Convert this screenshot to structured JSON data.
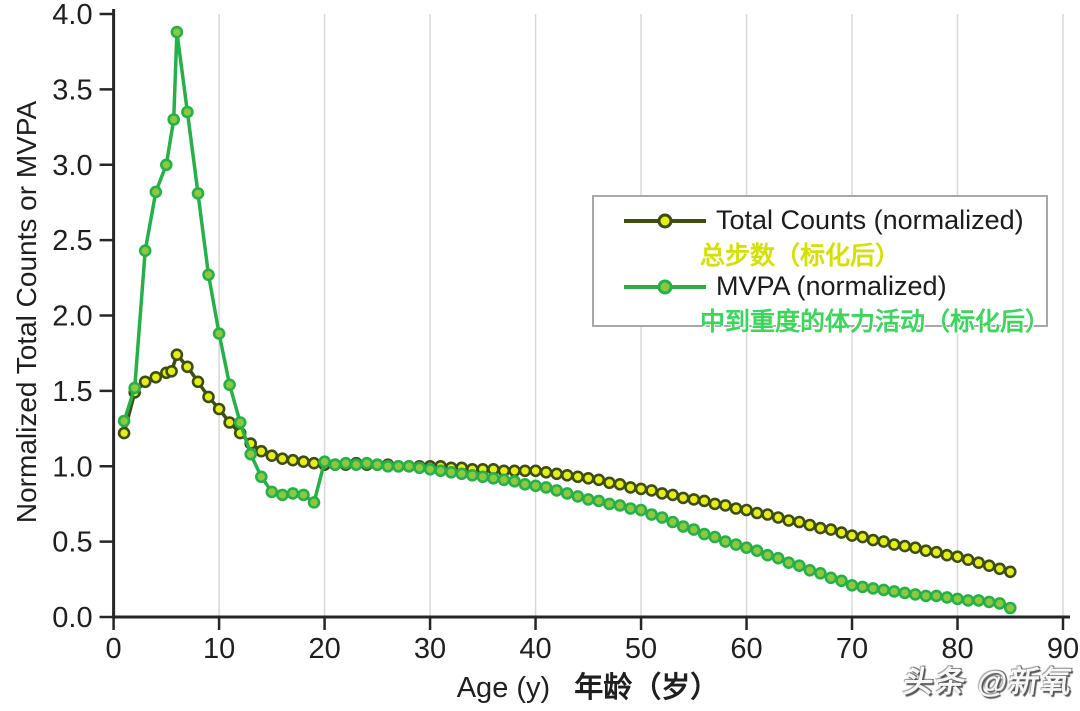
{
  "watermark": "头条 @新氧",
  "chart_data": {
    "type": "line",
    "title": "",
    "xlabel_en": "Age (y)",
    "xlabel_zh": "年龄（岁）",
    "ylabel": "Normalized Total Counts or MVPA",
    "xlim": [
      0,
      90
    ],
    "ylim": [
      0,
      4.0
    ],
    "x_ticks": [
      0,
      10,
      20,
      30,
      40,
      50,
      60,
      70,
      80,
      90
    ],
    "y_ticks": [
      0,
      0.5,
      1.0,
      1.5,
      2.0,
      2.5,
      3.0,
      3.5,
      4.0
    ],
    "y_tick_labels": [
      "0.0",
      "0.5",
      "1.0",
      "1.5",
      "2.0",
      "2.5",
      "3.0",
      "3.5",
      "4.0"
    ],
    "grid": "vertical-only",
    "gridline_color": "#d8d8d8",
    "axis_color": "#262626",
    "legend": {
      "position": "upper-right",
      "border_color": "#a8a8a8",
      "background": "#ffffff"
    },
    "series": [
      {
        "name": "Total Counts (normalized)",
        "name_zh": "总步数（标化后）",
        "name_zh_color": "#d4e000",
        "line_color": "#3d4d13",
        "marker_fill": "#e4ef17",
        "points": [
          [
            1,
            1.22
          ],
          [
            2,
            1.49
          ],
          [
            3,
            1.56
          ],
          [
            4,
            1.59
          ],
          [
            5,
            1.62
          ],
          [
            5.5,
            1.63
          ],
          [
            6,
            1.74
          ],
          [
            7,
            1.66
          ],
          [
            8,
            1.56
          ],
          [
            9,
            1.46
          ],
          [
            10,
            1.38
          ],
          [
            11,
            1.29
          ],
          [
            12,
            1.22
          ],
          [
            13,
            1.15
          ],
          [
            14,
            1.1
          ],
          [
            15,
            1.07
          ],
          [
            16,
            1.05
          ],
          [
            17,
            1.04
          ],
          [
            18,
            1.03
          ],
          [
            19,
            1.02
          ],
          [
            20,
            1.01
          ],
          [
            21,
            1.01
          ],
          [
            22,
            1.01
          ],
          [
            23,
            1.02
          ],
          [
            24,
            1.01
          ],
          [
            25,
            1.01
          ],
          [
            26,
            1.01
          ],
          [
            27,
            1.0
          ],
          [
            28,
            1.0
          ],
          [
            29,
            1.0
          ],
          [
            30,
            1.0
          ],
          [
            31,
            1.0
          ],
          [
            32,
            0.99
          ],
          [
            33,
            0.99
          ],
          [
            34,
            0.98
          ],
          [
            35,
            0.98
          ],
          [
            36,
            0.98
          ],
          [
            37,
            0.97
          ],
          [
            38,
            0.97
          ],
          [
            39,
            0.97
          ],
          [
            40,
            0.97
          ],
          [
            41,
            0.96
          ],
          [
            42,
            0.95
          ],
          [
            43,
            0.94
          ],
          [
            44,
            0.93
          ],
          [
            45,
            0.92
          ],
          [
            46,
            0.91
          ],
          [
            47,
            0.89
          ],
          [
            48,
            0.88
          ],
          [
            49,
            0.86
          ],
          [
            50,
            0.85
          ],
          [
            51,
            0.84
          ],
          [
            52,
            0.82
          ],
          [
            53,
            0.81
          ],
          [
            54,
            0.79
          ],
          [
            55,
            0.78
          ],
          [
            56,
            0.77
          ],
          [
            57,
            0.75
          ],
          [
            58,
            0.74
          ],
          [
            59,
            0.72
          ],
          [
            60,
            0.71
          ],
          [
            61,
            0.69
          ],
          [
            62,
            0.68
          ],
          [
            63,
            0.66
          ],
          [
            64,
            0.64
          ],
          [
            65,
            0.63
          ],
          [
            66,
            0.61
          ],
          [
            67,
            0.59
          ],
          [
            68,
            0.58
          ],
          [
            69,
            0.56
          ],
          [
            70,
            0.54
          ],
          [
            71,
            0.53
          ],
          [
            72,
            0.51
          ],
          [
            73,
            0.5
          ],
          [
            74,
            0.48
          ],
          [
            75,
            0.47
          ],
          [
            76,
            0.46
          ],
          [
            77,
            0.44
          ],
          [
            78,
            0.43
          ],
          [
            79,
            0.41
          ],
          [
            80,
            0.4
          ],
          [
            81,
            0.38
          ],
          [
            82,
            0.36
          ],
          [
            83,
            0.34
          ],
          [
            84,
            0.32
          ],
          [
            85,
            0.3
          ]
        ]
      },
      {
        "name": "MVPA (normalized)",
        "name_zh": "中到重度的体力活动（标化后）",
        "name_zh_color": "#3ed45e",
        "line_color": "#27b04a",
        "marker_fill": "#8cc93e",
        "points": [
          [
            1,
            1.3
          ],
          [
            2,
            1.52
          ],
          [
            3,
            2.43
          ],
          [
            4,
            2.82
          ],
          [
            5,
            3.0
          ],
          [
            5.7,
            3.3
          ],
          [
            6,
            3.88
          ],
          [
            7,
            3.35
          ],
          [
            8,
            2.81
          ],
          [
            9,
            2.27
          ],
          [
            10,
            1.88
          ],
          [
            11,
            1.54
          ],
          [
            12,
            1.29
          ],
          [
            13,
            1.08
          ],
          [
            14,
            0.93
          ],
          [
            15,
            0.83
          ],
          [
            16,
            0.81
          ],
          [
            17,
            0.82
          ],
          [
            18,
            0.81
          ],
          [
            19,
            0.76
          ],
          [
            20,
            1.03
          ],
          [
            21,
            1.01
          ],
          [
            22,
            1.02
          ],
          [
            23,
            1.01
          ],
          [
            24,
            1.02
          ],
          [
            25,
            1.01
          ],
          [
            26,
            1.0
          ],
          [
            27,
            1.0
          ],
          [
            28,
            1.0
          ],
          [
            29,
            0.99
          ],
          [
            30,
            0.98
          ],
          [
            31,
            0.97
          ],
          [
            32,
            0.96
          ],
          [
            33,
            0.95
          ],
          [
            34,
            0.94
          ],
          [
            35,
            0.93
          ],
          [
            36,
            0.92
          ],
          [
            37,
            0.91
          ],
          [
            38,
            0.9
          ],
          [
            39,
            0.88
          ],
          [
            40,
            0.87
          ],
          [
            41,
            0.86
          ],
          [
            42,
            0.84
          ],
          [
            43,
            0.82
          ],
          [
            44,
            0.8
          ],
          [
            45,
            0.78
          ],
          [
            46,
            0.77
          ],
          [
            47,
            0.75
          ],
          [
            48,
            0.74
          ],
          [
            49,
            0.72
          ],
          [
            50,
            0.71
          ],
          [
            51,
            0.68
          ],
          [
            52,
            0.66
          ],
          [
            53,
            0.63
          ],
          [
            54,
            0.6
          ],
          [
            55,
            0.58
          ],
          [
            56,
            0.55
          ],
          [
            57,
            0.53
          ],
          [
            58,
            0.5
          ],
          [
            59,
            0.48
          ],
          [
            60,
            0.46
          ],
          [
            61,
            0.44
          ],
          [
            62,
            0.41
          ],
          [
            63,
            0.39
          ],
          [
            64,
            0.36
          ],
          [
            65,
            0.34
          ],
          [
            66,
            0.31
          ],
          [
            67,
            0.29
          ],
          [
            68,
            0.26
          ],
          [
            69,
            0.24
          ],
          [
            70,
            0.21
          ],
          [
            71,
            0.2
          ],
          [
            72,
            0.19
          ],
          [
            73,
            0.18
          ],
          [
            74,
            0.17
          ],
          [
            75,
            0.16
          ],
          [
            76,
            0.15
          ],
          [
            77,
            0.14
          ],
          [
            78,
            0.14
          ],
          [
            79,
            0.13
          ],
          [
            80,
            0.12
          ],
          [
            81,
            0.11
          ],
          [
            82,
            0.11
          ],
          [
            83,
            0.1
          ],
          [
            84,
            0.09
          ],
          [
            85,
            0.06
          ]
        ]
      }
    ]
  }
}
